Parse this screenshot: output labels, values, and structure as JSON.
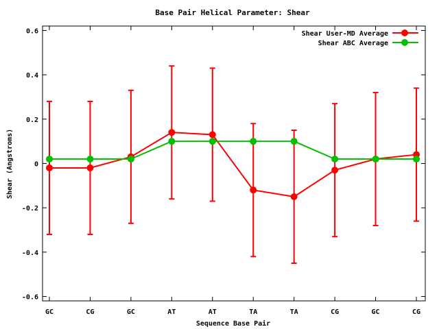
{
  "chart_data": {
    "type": "line",
    "title": "Base Pair Helical Parameter: Shear",
    "xlabel": "Sequence Base Pair",
    "ylabel": "Shear (Angstroms)",
    "categories": [
      "GC",
      "CG",
      "GC",
      "AT",
      "AT",
      "TA",
      "TA",
      "CG",
      "GC",
      "CG"
    ],
    "ylim": [
      -0.62,
      0.62
    ],
    "yticks": [
      -0.6,
      -0.4,
      -0.2,
      0,
      0.2,
      0.4,
      0.6
    ],
    "ytick_labels": [
      "-0.6",
      "-0.4",
      "-0.2",
      "0",
      "0.2",
      "0.4",
      "0.6"
    ],
    "legend_position": "top-right",
    "grid": false,
    "series": [
      {
        "name": "Shear User-MD Average",
        "color": "#ff0000",
        "values": [
          -0.02,
          -0.02,
          0.03,
          0.14,
          0.13,
          -0.12,
          -0.15,
          -0.03,
          0.02,
          0.04
        ],
        "error_low": [
          -0.32,
          -0.32,
          -0.27,
          -0.16,
          -0.17,
          -0.42,
          -0.45,
          -0.33,
          -0.28,
          -0.26
        ],
        "error_high": [
          0.28,
          0.28,
          0.33,
          0.44,
          0.43,
          0.18,
          0.15,
          0.27,
          0.32,
          0.34
        ]
      },
      {
        "name": "Shear ABC Average",
        "color": "#00c000",
        "values": [
          0.02,
          0.02,
          0.02,
          0.1,
          0.1,
          0.1,
          0.1,
          0.02,
          0.02,
          0.02
        ]
      }
    ]
  }
}
